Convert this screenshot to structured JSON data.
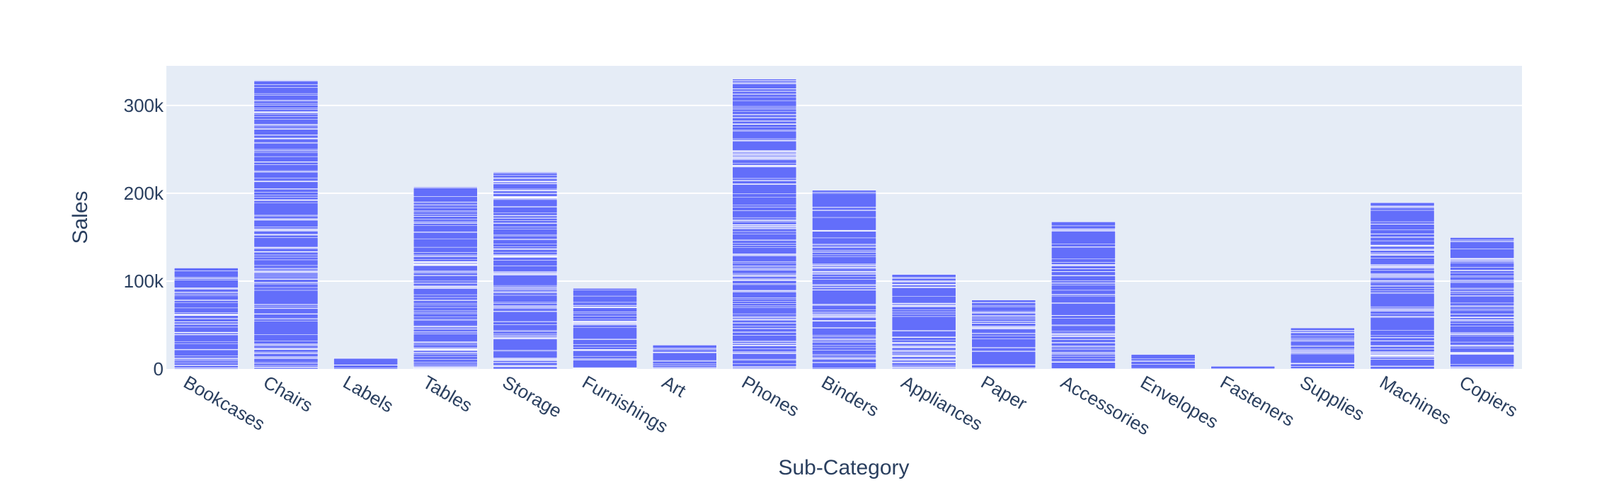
{
  "colors": {
    "plot_bg": "#e5ecf6",
    "grid": "#ffffff",
    "bar": "#636efa",
    "text": "#2a3f5f"
  },
  "chart_data": {
    "type": "bar",
    "title": "",
    "xlabel": "Sub-Category",
    "ylabel": "Sales",
    "ylim": [
      0,
      345000
    ],
    "grid": true,
    "y_ticks": [
      0,
      100000,
      200000,
      300000
    ],
    "y_tick_labels": [
      "0",
      "100k",
      "200k",
      "300k"
    ],
    "categories": [
      "Bookcases",
      "Chairs",
      "Labels",
      "Tables",
      "Storage",
      "Furnishings",
      "Art",
      "Phones",
      "Binders",
      "Appliances",
      "Paper",
      "Accessories",
      "Envelopes",
      "Fasteners",
      "Supplies",
      "Machines",
      "Copiers"
    ],
    "values": [
      114880,
      328450,
      12490,
      206970,
      223840,
      91710,
      27120,
      330010,
      203410,
      107530,
      78480,
      167380,
      16480,
      3020,
      46670,
      189240,
      149530
    ],
    "note_rendering": "each bar is a stack of many individual order segments separated by thin white lines"
  }
}
